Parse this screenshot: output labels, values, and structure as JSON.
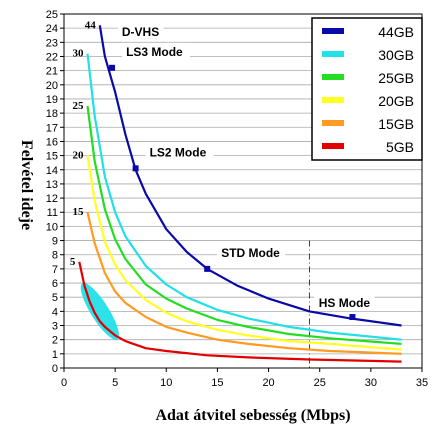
{
  "chart_data": {
    "type": "line",
    "xlabel": "Adat átvitel sebesség (Mbps)",
    "ylabel": "Felvétel ideje",
    "xlim": [
      0,
      35
    ],
    "ylim": [
      0,
      25
    ],
    "xticks": [
      0,
      5,
      10,
      15,
      20,
      25,
      30,
      35
    ],
    "yticks": [
      0,
      1,
      2,
      3,
      4,
      5,
      6,
      7,
      8,
      9,
      10,
      11,
      12,
      13,
      14,
      15,
      16,
      17,
      18,
      19,
      20,
      21,
      22,
      23,
      24,
      25
    ],
    "grid": true,
    "legend_position": "top-right",
    "reference_line_x": 24,
    "series": [
      {
        "name": "44GB",
        "color": "#0a0aa8",
        "curve_label": "44",
        "x": [
          3.5,
          4,
          5,
          6,
          7,
          8,
          10,
          12,
          14,
          17,
          20,
          24,
          28,
          33
        ],
        "y": [
          24.2,
          22.0,
          19.5,
          16.5,
          14.0,
          12.3,
          9.8,
          8.2,
          7.0,
          5.8,
          4.9,
          4.0,
          3.5,
          3.0
        ]
      },
      {
        "name": "30GB",
        "color": "#22e0e8",
        "curve_label": "30",
        "x": [
          2.3,
          3,
          4,
          5,
          6,
          8,
          10,
          12,
          15,
          18,
          22,
          26,
          33
        ],
        "y": [
          22.2,
          17.8,
          13.5,
          11.0,
          9.3,
          7.2,
          5.9,
          5.0,
          4.1,
          3.5,
          2.9,
          2.5,
          2.0
        ]
      },
      {
        "name": "25GB",
        "color": "#22dd22",
        "curve_label": "25",
        "x": [
          2.3,
          3,
          4,
          5,
          6,
          8,
          10,
          12,
          15,
          18,
          22,
          26,
          33
        ],
        "y": [
          18.5,
          14.6,
          11.2,
          9.1,
          7.7,
          5.9,
          4.9,
          4.2,
          3.4,
          2.9,
          2.4,
          2.1,
          1.7
        ]
      },
      {
        "name": "20GB",
        "color": "#ffff22",
        "curve_label": "20",
        "x": [
          2.3,
          3,
          4,
          5,
          6,
          8,
          10,
          12,
          15,
          18,
          22,
          26,
          33
        ],
        "y": [
          15.0,
          11.8,
          8.9,
          7.3,
          6.2,
          4.8,
          3.9,
          3.3,
          2.7,
          2.3,
          1.9,
          1.7,
          1.3
        ]
      },
      {
        "name": "15GB",
        "color": "#ff9a22",
        "curve_label": "15",
        "x": [
          2.3,
          3,
          4,
          5,
          6,
          8,
          10,
          12,
          15,
          18,
          22,
          26,
          33
        ],
        "y": [
          11.0,
          8.8,
          6.7,
          5.4,
          4.6,
          3.6,
          2.9,
          2.5,
          2.0,
          1.7,
          1.4,
          1.2,
          1.0
        ]
      },
      {
        "name": "5GB",
        "color": "#e00000",
        "curve_label": "5",
        "x": [
          1.5,
          2,
          2.5,
          3,
          3.5,
          4,
          5,
          6,
          8,
          10,
          14,
          18,
          24,
          33
        ],
        "y": [
          7.5,
          5.8,
          4.7,
          3.9,
          3.3,
          2.9,
          2.3,
          1.9,
          1.4,
          1.2,
          0.9,
          0.75,
          0.6,
          0.45
        ]
      }
    ],
    "mode_markers": [
      {
        "label": "D-VHS",
        "x": 3.9,
        "y": 24.0
      },
      {
        "label": "LS3 Mode",
        "x": 4.7,
        "y": 21.2
      },
      {
        "label": "LS2 Mode",
        "x": 7.0,
        "y": 14.1
      },
      {
        "label": "STD Mode",
        "x": 14.0,
        "y": 7.0
      },
      {
        "label": "HS Mode",
        "x": 28.2,
        "y": 3.6
      }
    ],
    "cyan_blob": {
      "color": "#22e0e8",
      "center": [
        3.5,
        4.0
      ]
    }
  }
}
